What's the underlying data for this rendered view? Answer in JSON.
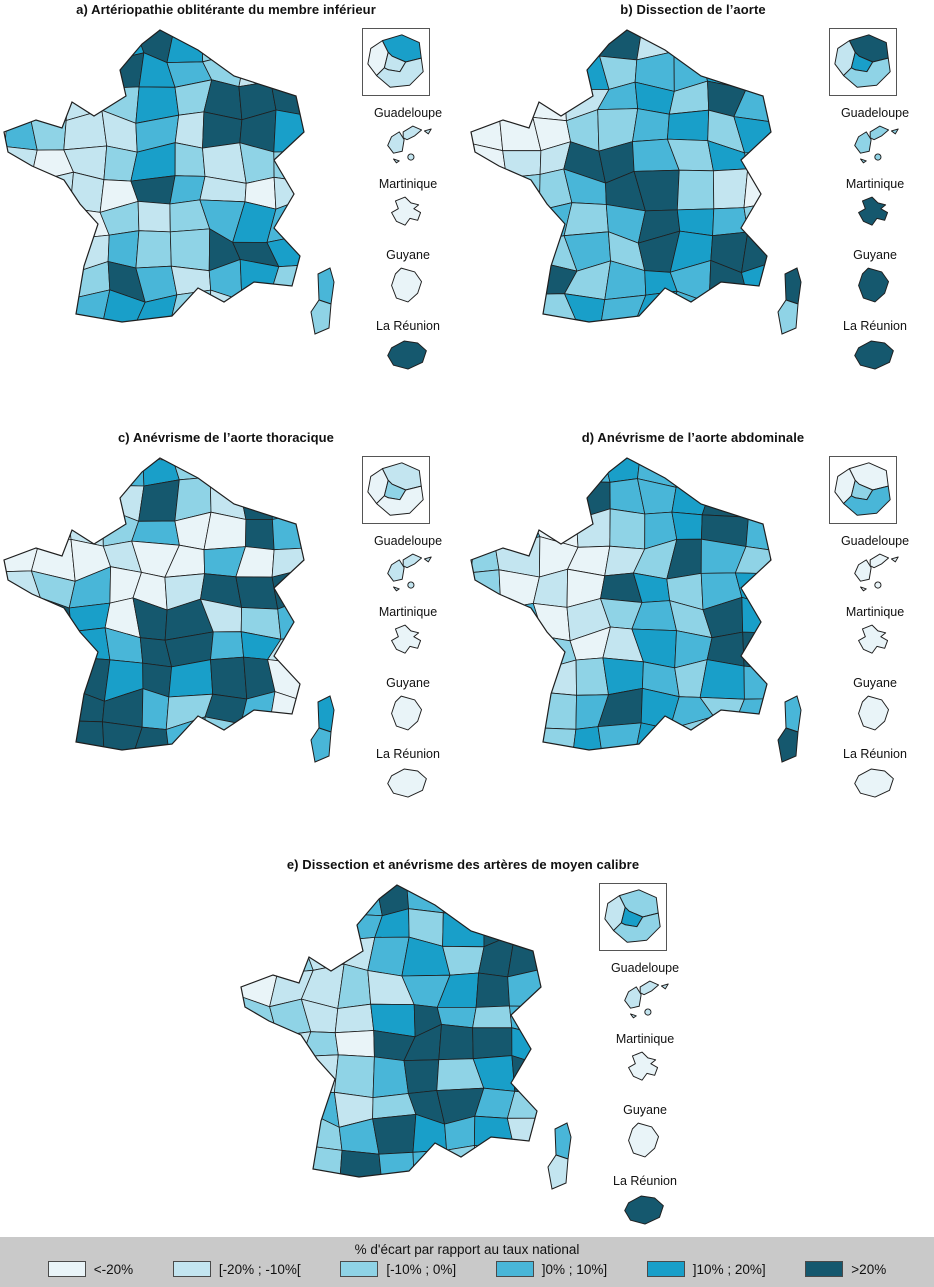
{
  "palette": {
    "classes": [
      {
        "label": "<-20%",
        "color": "#e9f4f8"
      },
      {
        "label": "[-20% ; -10%[",
        "color": "#c3e5f0"
      },
      {
        "label": "[-10% ; 0%]",
        "color": "#8fd3e6"
      },
      {
        "label": "]0% ; 10%]",
        "color": "#49b6d8"
      },
      {
        "label": "]10% ; 20%]",
        "color": "#199fc9"
      },
      {
        "label": ">20%",
        "color": "#15586e"
      }
    ],
    "map_border": "#1f1f1f",
    "legend_background": "#c9c9c9"
  },
  "legend": {
    "title": "% d'écart par rapport au taux national",
    "items": [
      {
        "label": "<-20%",
        "color": "#e9f4f8"
      },
      {
        "label": "[-20% ; -10%[",
        "color": "#c3e5f0"
      },
      {
        "label": "[-10% ; 0%]",
        "color": "#8fd3e6"
      },
      {
        "label": "]0% ; 10%]",
        "color": "#49b6d8"
      },
      {
        "label": "]10% ; 20%]",
        "color": "#199fc9"
      },
      {
        "label": ">20%",
        "color": "#15586e"
      }
    ]
  },
  "panels": [
    {
      "id": "a",
      "title": "a) Artériopathie oblitérante du membre inférieur",
      "overseas": [
        {
          "name": "Guadeloupe",
          "class": 1
        },
        {
          "name": "Martinique",
          "class": 0
        },
        {
          "name": "Guyane",
          "class": 0
        },
        {
          "name": "La Réunion",
          "class": 5
        }
      ],
      "inset_classes": [
        0,
        4,
        1,
        1
      ],
      "corsica_classes": [
        3,
        2
      ],
      "grid_classes": [
        0,
        0,
        0,
        4,
        5,
        4,
        2,
        0,
        0,
        0,
        2,
        3,
        5,
        4,
        3,
        2,
        1,
        0,
        4,
        3,
        1,
        2,
        4,
        2,
        5,
        5,
        5,
        3,
        2,
        1,
        1,
        3,
        1,
        5,
        5,
        4,
        1,
        0,
        1,
        2,
        4,
        2,
        1,
        2,
        2,
        2,
        1,
        1,
        0,
        5,
        3,
        1,
        0,
        1,
        2,
        2,
        0,
        2,
        1,
        2,
        3,
        4,
        3,
        3,
        2,
        1,
        3,
        2,
        2,
        5,
        5,
        4,
        2,
        4,
        2,
        5,
        3,
        1,
        3,
        4,
        2,
        1,
        2,
        3,
        4,
        4,
        2,
        1,
        0,
        0
      ]
    },
    {
      "id": "b",
      "title": "b) Dissection de l’aorte",
      "overseas": [
        {
          "name": "Guadeloupe",
          "class": 2
        },
        {
          "name": "Martinique",
          "class": 5
        },
        {
          "name": "Guyane",
          "class": 5
        },
        {
          "name": "La Réunion",
          "class": 5
        }
      ],
      "inset_classes": [
        1,
        5,
        4,
        2
      ],
      "corsica_classes": [
        5,
        2
      ],
      "grid_classes": [
        0,
        0,
        0,
        3,
        5,
        1,
        1,
        0,
        0,
        0,
        1,
        2,
        4,
        2,
        3,
        3,
        4,
        2,
        0,
        0,
        0,
        1,
        3,
        4,
        2,
        5,
        3,
        0,
        0,
        0,
        2,
        2,
        3,
        4,
        2,
        4,
        0,
        1,
        1,
        5,
        5,
        3,
        2,
        4,
        2,
        1,
        2,
        2,
        3,
        5,
        5,
        2,
        1,
        0,
        0,
        2,
        3,
        2,
        3,
        5,
        4,
        3,
        2,
        1,
        0,
        2,
        3,
        2,
        5,
        4,
        5,
        5,
        1,
        3,
        5,
        2,
        3,
        4,
        3,
        5,
        4,
        0,
        2,
        2,
        4,
        3,
        4,
        3,
        2,
        0
      ]
    },
    {
      "id": "c",
      "title": "c) Anévrisme de l’aorte thoracique",
      "overseas": [
        {
          "name": "Guadeloupe",
          "class": 1
        },
        {
          "name": "Martinique",
          "class": 0
        },
        {
          "name": "Guyane",
          "class": 0
        },
        {
          "name": "La Réunion",
          "class": 0
        }
      ],
      "inset_classes": [
        0,
        1,
        2,
        0
      ],
      "corsica_classes": [
        4,
        3
      ],
      "grid_classes": [
        0,
        0,
        0,
        3,
        4,
        2,
        1,
        0,
        0,
        0,
        1,
        2,
        1,
        5,
        2,
        1,
        5,
        4,
        0,
        0,
        1,
        2,
        3,
        0,
        0,
        5,
        3,
        0,
        0,
        0,
        1,
        0,
        0,
        3,
        0,
        1,
        1,
        2,
        3,
        0,
        0,
        1,
        5,
        5,
        5,
        5,
        5,
        4,
        0,
        5,
        5,
        1,
        2,
        3,
        5,
        5,
        4,
        3,
        5,
        5,
        3,
        4,
        1,
        5,
        5,
        5,
        4,
        5,
        4,
        5,
        5,
        0,
        3,
        5,
        5,
        5,
        3,
        2,
        5,
        3,
        0,
        1,
        4,
        5,
        5,
        5,
        3,
        2,
        0,
        0
      ]
    },
    {
      "id": "d",
      "title": "d) Anévrisme de l’aorte abdominale",
      "overseas": [
        {
          "name": "Guadeloupe",
          "class": 0
        },
        {
          "name": "Martinique",
          "class": 0
        },
        {
          "name": "Guyane",
          "class": 0
        },
        {
          "name": "La Réunion",
          "class": 0
        }
      ],
      "inset_classes": [
        0,
        0,
        2,
        3
      ],
      "corsica_classes": [
        3,
        5
      ],
      "grid_classes": [
        0,
        0,
        0,
        3,
        4,
        3,
        2,
        0,
        0,
        0,
        2,
        2,
        5,
        3,
        3,
        4,
        5,
        2,
        1,
        3,
        0,
        1,
        2,
        3,
        4,
        5,
        3,
        2,
        1,
        0,
        0,
        1,
        2,
        5,
        3,
        2,
        2,
        0,
        1,
        0,
        5,
        4,
        2,
        3,
        4,
        5,
        3,
        0,
        1,
        2,
        3,
        2,
        5,
        4,
        5,
        4,
        2,
        0,
        1,
        4,
        3,
        5,
        5,
        5,
        3,
        1,
        2,
        4,
        3,
        2,
        4,
        3,
        5,
        4,
        2,
        3,
        5,
        4,
        3,
        2,
        3,
        1,
        3,
        2,
        4,
        3,
        4,
        2,
        0,
        0
      ]
    },
    {
      "id": "e",
      "title": "e) Dissection et anévrisme des artères de moyen calibre",
      "overseas": [
        {
          "name": "Guadeloupe",
          "class": 1
        },
        {
          "name": "Martinique",
          "class": 0
        },
        {
          "name": "Guyane",
          "class": 0
        },
        {
          "name": "La Réunion",
          "class": 5
        }
      ],
      "inset_classes": [
        1,
        2,
        4,
        2
      ],
      "corsica_classes": [
        3,
        1
      ],
      "grid_classes": [
        0,
        0,
        0,
        3,
        5,
        3,
        1,
        0,
        0,
        0,
        1,
        2,
        3,
        4,
        2,
        4,
        5,
        1,
        1,
        2,
        1,
        1,
        3,
        4,
        2,
        5,
        5,
        0,
        1,
        1,
        2,
        1,
        3,
        4,
        5,
        3,
        2,
        2,
        1,
        1,
        4,
        5,
        3,
        2,
        3,
        1,
        1,
        2,
        0,
        5,
        5,
        5,
        5,
        4,
        2,
        3,
        1,
        2,
        3,
        5,
        2,
        4,
        5,
        2,
        2,
        3,
        1,
        2,
        5,
        5,
        3,
        2,
        1,
        3,
        2,
        3,
        5,
        4,
        3,
        4,
        1,
        0,
        2,
        2,
        5,
        3,
        3,
        2,
        0,
        0
      ]
    }
  ]
}
